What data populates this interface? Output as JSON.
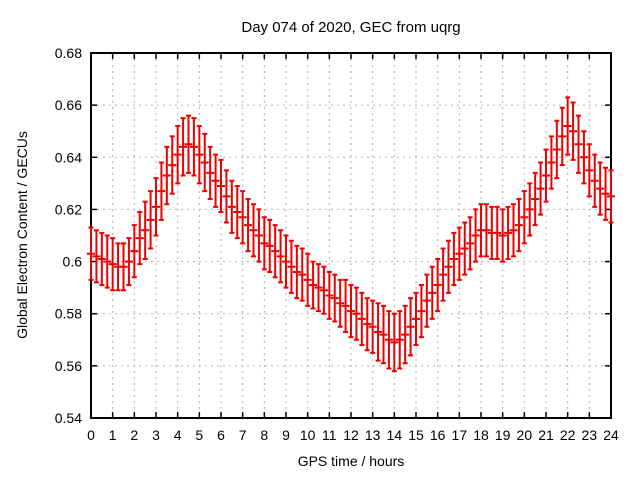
{
  "colors": {
    "data": "#ee0000",
    "grid": "#b0b0b0",
    "axis": "#000000",
    "background": "#ffffff",
    "text": "#000000"
  },
  "chart_data": {
    "type": "line",
    "style": "yerrorbars",
    "title": "Day 074 of 2020, GEC from uqrg",
    "xlabel": "GPS time / hours",
    "ylabel": "Global Electron Content / GECUs",
    "xlim": [
      0,
      24
    ],
    "ylim": [
      0.54,
      0.68
    ],
    "grid": "dotted",
    "legend": "none",
    "xticks": [
      0,
      1,
      2,
      3,
      4,
      5,
      6,
      7,
      8,
      9,
      10,
      11,
      12,
      13,
      14,
      15,
      16,
      17,
      18,
      19,
      20,
      21,
      22,
      23,
      24
    ],
    "xtick_labels": [
      "0",
      "1",
      "2",
      "3",
      "4",
      "5",
      "6",
      "7",
      "8",
      "9",
      "10",
      "11",
      "12",
      "13",
      "14",
      "15",
      "16",
      "17",
      "18",
      "19",
      "20",
      "21",
      "22",
      "23",
      "24"
    ],
    "yticks": [
      0.54,
      0.56,
      0.58,
      0.6,
      0.62,
      0.64,
      0.66,
      0.68
    ],
    "ytick_labels": [
      "0.54",
      "0.56",
      "0.58",
      "0.6",
      "0.62",
      "0.64",
      "0.66",
      "0.68"
    ],
    "series": [
      {
        "name": "GEC",
        "color": "#ee0000",
        "x": [
          0,
          0.25,
          0.5,
          0.75,
          1,
          1.25,
          1.5,
          1.75,
          2,
          2.25,
          2.5,
          2.75,
          3,
          3.25,
          3.5,
          3.75,
          4,
          4.25,
          4.5,
          4.75,
          5,
          5.25,
          5.5,
          5.75,
          6,
          6.25,
          6.5,
          6.75,
          7,
          7.25,
          7.5,
          7.75,
          8,
          8.25,
          8.5,
          8.75,
          9,
          9.25,
          9.5,
          9.75,
          10,
          10.25,
          10.5,
          10.75,
          11,
          11.25,
          11.5,
          11.75,
          12,
          12.25,
          12.5,
          12.75,
          13,
          13.25,
          13.5,
          13.75,
          14,
          14.25,
          14.5,
          14.75,
          15,
          15.25,
          15.5,
          15.75,
          16,
          16.25,
          16.5,
          16.75,
          17,
          17.25,
          17.5,
          17.75,
          18,
          18.25,
          18.5,
          18.75,
          19,
          19.25,
          19.5,
          19.75,
          20,
          20.25,
          20.5,
          20.75,
          21,
          21.25,
          21.5,
          21.75,
          22,
          22.25,
          22.5,
          22.75,
          23,
          23.25,
          23.5,
          23.75,
          24
        ],
        "y": [
          0.603,
          0.602,
          0.601,
          0.6,
          0.599,
          0.598,
          0.598,
          0.6,
          0.604,
          0.609,
          0.612,
          0.616,
          0.621,
          0.627,
          0.633,
          0.637,
          0.641,
          0.644,
          0.645,
          0.644,
          0.641,
          0.638,
          0.634,
          0.631,
          0.629,
          0.625,
          0.621,
          0.619,
          0.617,
          0.614,
          0.612,
          0.61,
          0.607,
          0.606,
          0.604,
          0.602,
          0.6,
          0.598,
          0.596,
          0.595,
          0.593,
          0.591,
          0.59,
          0.589,
          0.587,
          0.586,
          0.584,
          0.583,
          0.581,
          0.58,
          0.578,
          0.576,
          0.575,
          0.573,
          0.572,
          0.57,
          0.569,
          0.57,
          0.572,
          0.575,
          0.578,
          0.581,
          0.585,
          0.588,
          0.591,
          0.595,
          0.598,
          0.601,
          0.603,
          0.605,
          0.607,
          0.61,
          0.612,
          0.612,
          0.611,
          0.611,
          0.61,
          0.611,
          0.612,
          0.614,
          0.617,
          0.62,
          0.624,
          0.628,
          0.633,
          0.638,
          0.643,
          0.648,
          0.652,
          0.65,
          0.645,
          0.64,
          0.635,
          0.631,
          0.628,
          0.626,
          0.625
        ],
        "yerr": [
          0.01,
          0.01,
          0.01,
          0.01,
          0.01,
          0.009,
          0.009,
          0.009,
          0.01,
          0.01,
          0.011,
          0.011,
          0.011,
          0.011,
          0.011,
          0.011,
          0.011,
          0.011,
          0.011,
          0.011,
          0.011,
          0.011,
          0.01,
          0.01,
          0.01,
          0.01,
          0.01,
          0.01,
          0.01,
          0.01,
          0.01,
          0.01,
          0.01,
          0.01,
          0.01,
          0.01,
          0.01,
          0.01,
          0.01,
          0.01,
          0.01,
          0.009,
          0.009,
          0.009,
          0.009,
          0.009,
          0.009,
          0.01,
          0.01,
          0.01,
          0.01,
          0.01,
          0.01,
          0.011,
          0.011,
          0.011,
          0.011,
          0.011,
          0.011,
          0.011,
          0.01,
          0.01,
          0.01,
          0.01,
          0.01,
          0.01,
          0.01,
          0.01,
          0.01,
          0.01,
          0.01,
          0.01,
          0.01,
          0.01,
          0.01,
          0.01,
          0.01,
          0.01,
          0.01,
          0.01,
          0.01,
          0.01,
          0.01,
          0.01,
          0.01,
          0.01,
          0.011,
          0.011,
          0.011,
          0.011,
          0.011,
          0.01,
          0.01,
          0.01,
          0.01,
          0.01,
          0.01
        ]
      }
    ]
  }
}
